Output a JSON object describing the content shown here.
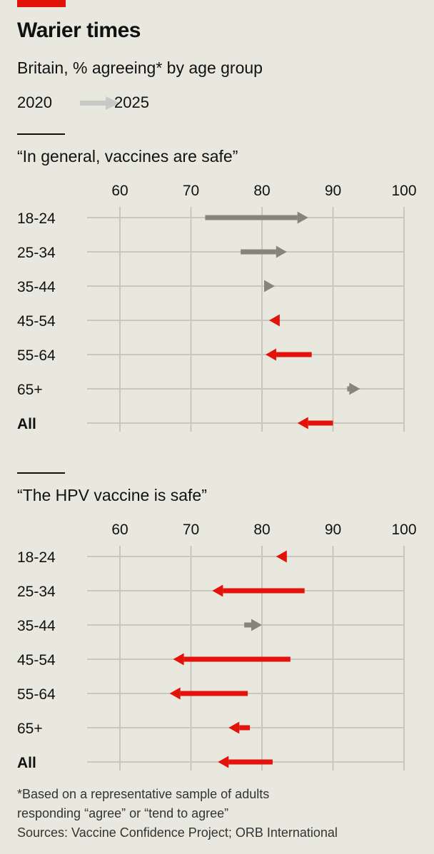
{
  "header": {
    "title": "Warier times",
    "subtitle": "Britain, % agreeing* by age group"
  },
  "legend": {
    "from_label": "2020",
    "to_label": "2025",
    "arrow_color": "#c8c8c5"
  },
  "colors": {
    "increase": "#858579",
    "decrease": "#e3120b",
    "grid": "#c8c7bf",
    "background": "#e9e8df"
  },
  "chart_data": [
    {
      "type": "arrow",
      "title": "“In general, vaccines are safe”",
      "x_ticks": [
        60,
        70,
        80,
        90,
        100
      ],
      "xlim": [
        55,
        100
      ],
      "categories": [
        "18-24",
        "25-34",
        "35-44",
        "45-54",
        "55-64",
        "65+",
        "All"
      ],
      "bold_categories": [
        "All"
      ],
      "series": [
        {
          "name": "2020",
          "values": [
            72,
            77,
            80.3,
            82.5,
            87,
            92,
            90
          ]
        },
        {
          "name": "2025",
          "values": [
            86.5,
            83.5,
            81.8,
            81,
            80.5,
            93.8,
            85
          ]
        }
      ]
    },
    {
      "type": "arrow",
      "title": "“The HPV vaccine is safe”",
      "x_ticks": [
        60,
        70,
        80,
        90,
        100
      ],
      "xlim": [
        55,
        100
      ],
      "categories": [
        "18-24",
        "25-34",
        "35-44",
        "45-54",
        "55-64",
        "65+",
        "All"
      ],
      "bold_categories": [
        "All"
      ],
      "series": [
        {
          "name": "2020",
          "values": [
            83.5,
            86,
            77.5,
            84,
            78,
            78.3,
            81.5
          ]
        },
        {
          "name": "2025",
          "values": [
            82,
            73,
            80,
            67.5,
            67,
            75.3,
            73.8
          ]
        }
      ]
    }
  ],
  "footnote": {
    "line1": "*Based on a representative sample of adults",
    "line2": "responding “agree” or “tend to agree”",
    "line3": "Sources: Vaccine Confidence Project; ORB International"
  }
}
